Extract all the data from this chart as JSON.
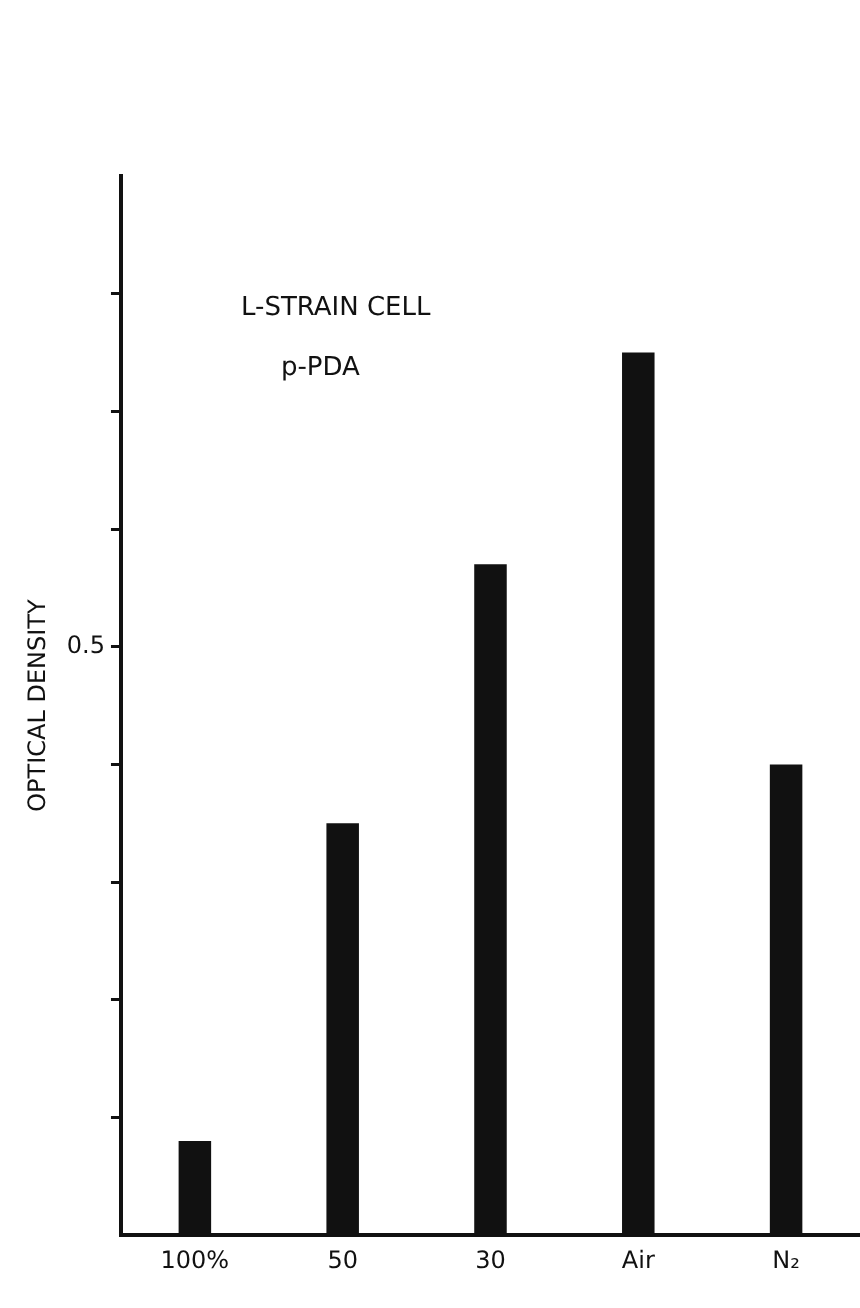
{
  "chart_data": {
    "type": "bar",
    "title": "L-STRAIN CELL",
    "subtitle": "p-PDA",
    "ylabel": "OPTICAL DENSITY",
    "categories": [
      "100%",
      "50",
      "30",
      "Air",
      "N₂"
    ],
    "values": [
      0.08,
      0.35,
      0.57,
      0.75,
      0.4
    ],
    "color": "#111111",
    "ylim": [
      0,
      0.9
    ],
    "yticks": [
      {
        "value": 0.1,
        "label": null
      },
      {
        "value": 0.2,
        "label": null
      },
      {
        "value": 0.3,
        "label": null
      },
      {
        "value": 0.4,
        "label": null
      },
      0.5,
      {
        "value": 0.6,
        "label": null
      },
      {
        "value": 0.7,
        "label": null
      },
      {
        "value": 0.8,
        "label": null
      }
    ],
    "grid": false,
    "legend": false
  }
}
